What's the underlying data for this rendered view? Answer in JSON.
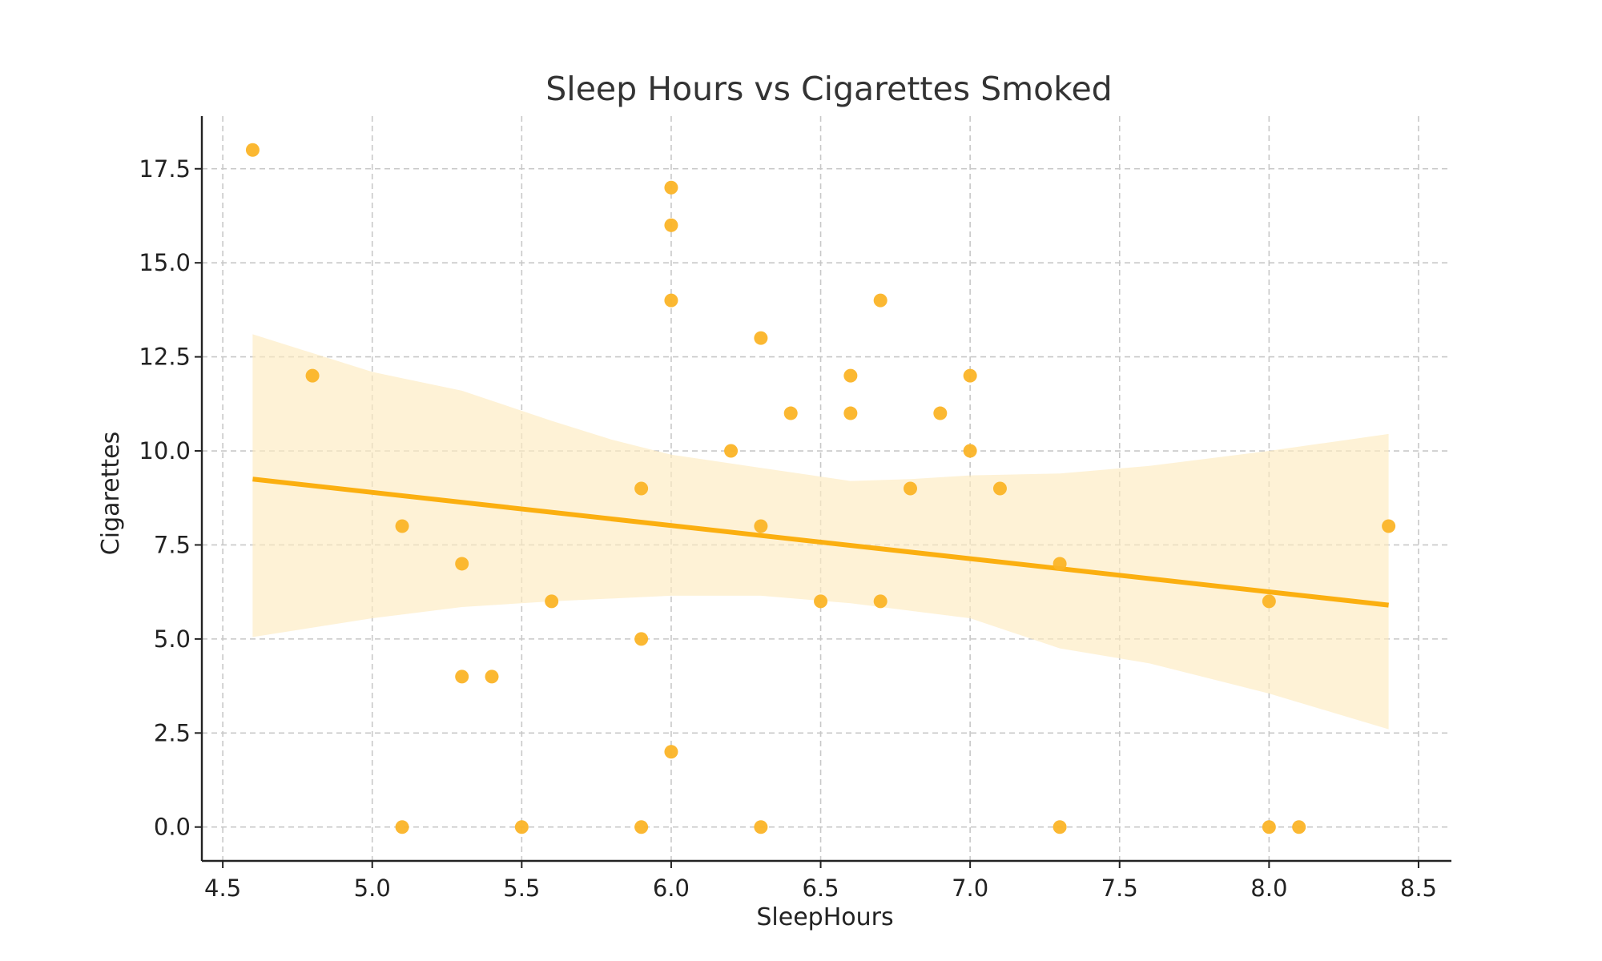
{
  "colors": {
    "point": "#fbb427",
    "line": "#fbaf10",
    "band": "#fdebc0",
    "grid": "#c8c8c8",
    "axis": "#222222",
    "title": "#333333"
  },
  "chart_data": {
    "type": "scatter",
    "title": "Sleep Hours vs Cigarettes Smoked",
    "xlabel": "SleepHours",
    "ylabel": "Cigarettes",
    "xlim": [
      4.43,
      8.61
    ],
    "ylim": [
      -0.9,
      18.9
    ],
    "xticks": [
      4.5,
      5.0,
      5.5,
      6.0,
      6.5,
      7.0,
      7.5,
      8.0,
      8.5
    ],
    "yticks": [
      0.0,
      2.5,
      5.0,
      7.5,
      10.0,
      12.5,
      15.0,
      17.5
    ],
    "grid": true,
    "legend": "none",
    "points": [
      {
        "x": 4.6,
        "y": 18
      },
      {
        "x": 4.8,
        "y": 12
      },
      {
        "x": 5.1,
        "y": 8
      },
      {
        "x": 5.1,
        "y": 0
      },
      {
        "x": 5.3,
        "y": 7
      },
      {
        "x": 5.3,
        "y": 4
      },
      {
        "x": 5.4,
        "y": 4
      },
      {
        "x": 5.5,
        "y": 0
      },
      {
        "x": 5.6,
        "y": 6
      },
      {
        "x": 5.9,
        "y": 9
      },
      {
        "x": 5.9,
        "y": 5
      },
      {
        "x": 5.9,
        "y": 0
      },
      {
        "x": 6.0,
        "y": 17
      },
      {
        "x": 6.0,
        "y": 16
      },
      {
        "x": 6.0,
        "y": 14
      },
      {
        "x": 6.0,
        "y": 2
      },
      {
        "x": 6.2,
        "y": 10
      },
      {
        "x": 6.3,
        "y": 13
      },
      {
        "x": 6.3,
        "y": 8
      },
      {
        "x": 6.3,
        "y": 0
      },
      {
        "x": 6.4,
        "y": 11
      },
      {
        "x": 6.5,
        "y": 6
      },
      {
        "x": 6.6,
        "y": 12
      },
      {
        "x": 6.6,
        "y": 11
      },
      {
        "x": 6.7,
        "y": 14
      },
      {
        "x": 6.7,
        "y": 6
      },
      {
        "x": 6.8,
        "y": 9
      },
      {
        "x": 6.9,
        "y": 11
      },
      {
        "x": 7.0,
        "y": 12
      },
      {
        "x": 7.0,
        "y": 10
      },
      {
        "x": 7.1,
        "y": 9
      },
      {
        "x": 7.3,
        "y": 7
      },
      {
        "x": 7.3,
        "y": 0
      },
      {
        "x": 8.0,
        "y": 6
      },
      {
        "x": 8.0,
        "y": 0
      },
      {
        "x": 8.1,
        "y": 0
      },
      {
        "x": 8.4,
        "y": 8
      }
    ],
    "regression_line": {
      "x": [
        4.6,
        8.4
      ],
      "y": [
        9.25,
        5.9
      ]
    },
    "confidence_band": {
      "upper": [
        {
          "x": 4.6,
          "y": 13.1
        },
        {
          "x": 5.0,
          "y": 12.1
        },
        {
          "x": 5.3,
          "y": 11.6
        },
        {
          "x": 5.6,
          "y": 10.8
        },
        {
          "x": 5.8,
          "y": 10.3
        },
        {
          "x": 6.0,
          "y": 9.9
        },
        {
          "x": 6.3,
          "y": 9.55
        },
        {
          "x": 6.6,
          "y": 9.2
        },
        {
          "x": 6.8,
          "y": 9.25
        },
        {
          "x": 7.0,
          "y": 9.35
        },
        {
          "x": 7.3,
          "y": 9.4
        },
        {
          "x": 7.6,
          "y": 9.6
        },
        {
          "x": 8.0,
          "y": 10.0
        },
        {
          "x": 8.4,
          "y": 10.45
        }
      ],
      "lower": [
        {
          "x": 4.6,
          "y": 5.05
        },
        {
          "x": 5.0,
          "y": 5.55
        },
        {
          "x": 5.3,
          "y": 5.85
        },
        {
          "x": 5.6,
          "y": 6.0
        },
        {
          "x": 6.0,
          "y": 6.15
        },
        {
          "x": 6.3,
          "y": 6.15
        },
        {
          "x": 6.6,
          "y": 5.95
        },
        {
          "x": 7.0,
          "y": 5.55
        },
        {
          "x": 7.3,
          "y": 4.75
        },
        {
          "x": 7.6,
          "y": 4.35
        },
        {
          "x": 8.0,
          "y": 3.55
        },
        {
          "x": 8.4,
          "y": 2.6
        }
      ]
    }
  }
}
